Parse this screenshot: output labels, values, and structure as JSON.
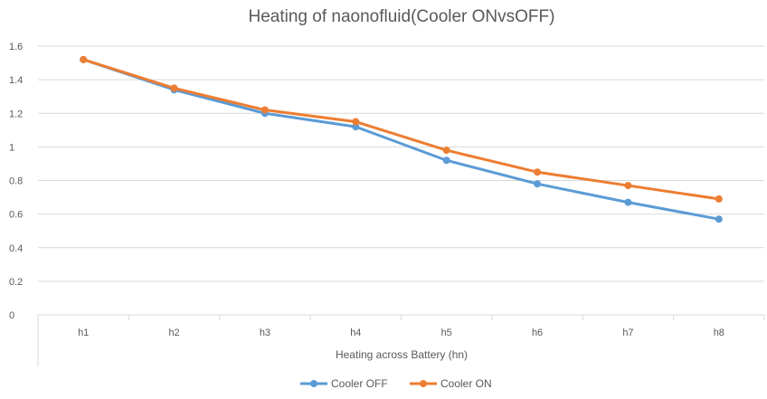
{
  "chart_data": {
    "type": "line",
    "title": "Heating of naonofluid(Cooler ONvsOFF)",
    "xlabel": "Heating across Battery  (hn)",
    "ylabel": "",
    "categories": [
      "h1",
      "h2",
      "h3",
      "h4",
      "h5",
      "h6",
      "h7",
      "h8"
    ],
    "ylim": [
      0,
      1.6
    ],
    "yticks": [
      "0",
      "0.2",
      "0.4",
      "0.6",
      "0.8",
      "1",
      "1.2",
      "1.4",
      "1.6"
    ],
    "ytick_values": [
      0,
      0.2,
      0.4,
      0.6,
      0.8,
      1,
      1.2,
      1.4,
      1.6
    ],
    "grid": true,
    "legend_position": "bottom-center",
    "series": [
      {
        "name": "Cooler OFF",
        "color": "#5b9bd5",
        "values": [
          1.52,
          1.34,
          1.2,
          1.12,
          0.92,
          0.78,
          0.67,
          0.57
        ]
      },
      {
        "name": "Cooler ON",
        "color": "#ed7d31",
        "values": [
          1.52,
          1.35,
          1.22,
          1.15,
          0.98,
          0.85,
          0.77,
          0.69
        ]
      }
    ]
  }
}
